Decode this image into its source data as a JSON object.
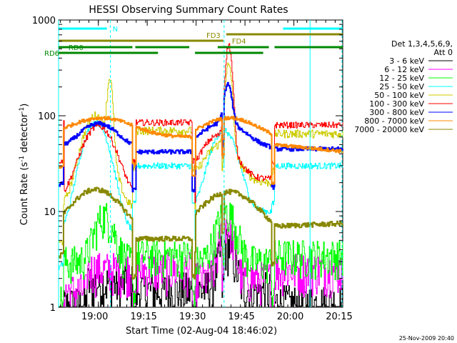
{
  "chart_data": {
    "type": "line",
    "title": "HESSI Observing Summary Count Rates",
    "xlabel": "Start Time (02-Aug-04 18:46:02)",
    "ylabel_main": "Count Rate (s",
    "ylabel_sup1": "-1",
    "ylabel_mid": " detector",
    "ylabel_sup2": "-1",
    "ylabel_end": ")",
    "y_scale": "log",
    "ylim": [
      1,
      1000
    ],
    "xlim": [
      0,
      100
    ],
    "x_tick_labels": [
      "19:00",
      "19:15",
      "19:30",
      "19:45",
      "20:00",
      "20:15"
    ],
    "x_tick_values": [
      14,
      31.2,
      48.4,
      65.6,
      82.8,
      100
    ],
    "y_tick_labels": [
      "1",
      "10",
      "100",
      "1000"
    ],
    "y_tick_values": [
      1,
      10,
      100,
      1000
    ],
    "legend_header": [
      "Det 1,3,4,5,6,9,",
      "Att 0"
    ],
    "legend": [
      {
        "label": "3 - 6 keV",
        "color": "#000000"
      },
      {
        "label": "6 - 12 keV",
        "color": "#ff00ff"
      },
      {
        "label": "12 - 25 keV",
        "color": "#00ff00"
      },
      {
        "label": "25 - 50 keV",
        "color": "#00ffff"
      },
      {
        "label": "50 - 100 keV",
        "color": "#cccc00"
      },
      {
        "label": "100 - 300 keV",
        "color": "#ff0000"
      },
      {
        "label": "300 - 800 keV",
        "color": "#0000ff"
      },
      {
        "label": "800 - 7000 keV",
        "color": "#ff8800"
      },
      {
        "label": "7000 - 20000 keV",
        "color": "#888800"
      }
    ],
    "flag_labels": {
      "n": "N",
      "fd3": "FD3",
      "fd4": "FD4",
      "rd0": "RD0",
      "rd6": "RD6"
    },
    "timestamp": "25-Nov-2009 20:40",
    "colors": {
      "cyan": "#00ffff",
      "olive": "#888800",
      "dark_green": "#008800",
      "orange": "#ff8800",
      "red": "#ff0000",
      "blue": "#0000ff",
      "yellow": "#cccc00",
      "green": "#00ff00",
      "magenta": "#ff00ff",
      "black": "#000000"
    }
  }
}
